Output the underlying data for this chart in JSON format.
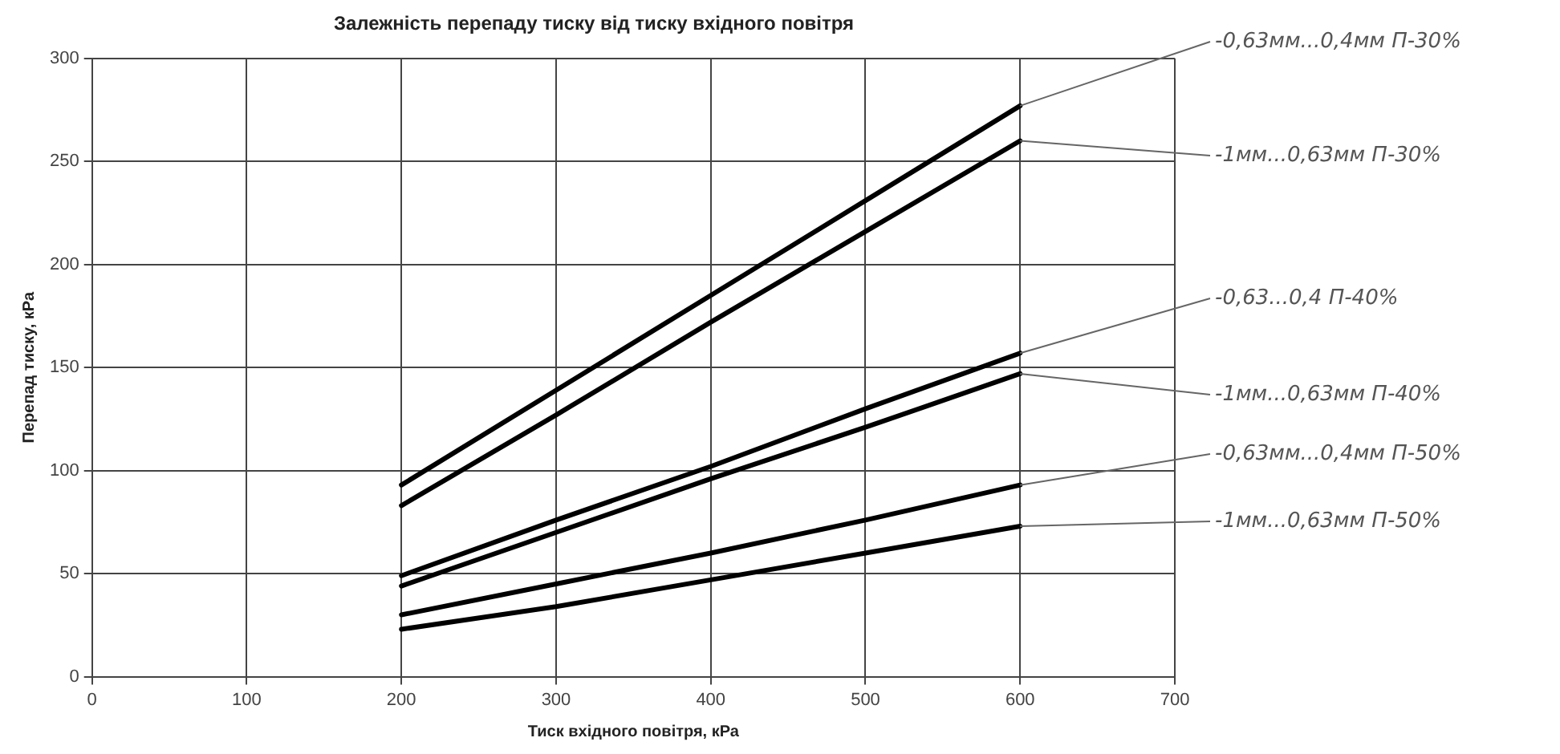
{
  "chart_data": {
    "type": "line",
    "title": "Залежність перепаду тиску від тиску вхідного повітря",
    "xlabel": "Тиск вхідного повітря, кРа",
    "ylabel": "Перепад тиску, кРа",
    "xlim": [
      0,
      700
    ],
    "xticks": [
      0,
      100,
      200,
      300,
      400,
      500,
      600,
      700
    ],
    "ylim": [
      0,
      300
    ],
    "yticks": [
      0,
      50,
      100,
      150,
      200,
      250,
      300
    ],
    "grid": true,
    "legend": false,
    "marker": "none",
    "line_style": "solid",
    "x": [
      200,
      300,
      400,
      500,
      600
    ],
    "series": [
      {
        "name": "-0,63мм...0,4мм П-30%",
        "color": "#000000",
        "values": [
          93,
          139,
          185,
          231,
          277
        ]
      },
      {
        "name": "-1мм...0,63мм П-30%",
        "color": "#000000",
        "values": [
          83,
          127,
          172,
          216,
          260
        ]
      },
      {
        "name": "-0,63...0,4 П-40%",
        "color": "#000000",
        "values": [
          49,
          76,
          102,
          130,
          157
        ]
      },
      {
        "name": "-1мм...0,63мм П-40%",
        "color": "#000000",
        "values": [
          44,
          70,
          96,
          121,
          147
        ]
      },
      {
        "name": "-0,63мм...0,4мм П-50%",
        "color": "#000000",
        "values": [
          30,
          45,
          60,
          76,
          93
        ]
      },
      {
        "name": "-1мм...0,63мм П-50%",
        "color": "#000000",
        "values": [
          23,
          34,
          47,
          60,
          73
        ]
      }
    ]
  }
}
